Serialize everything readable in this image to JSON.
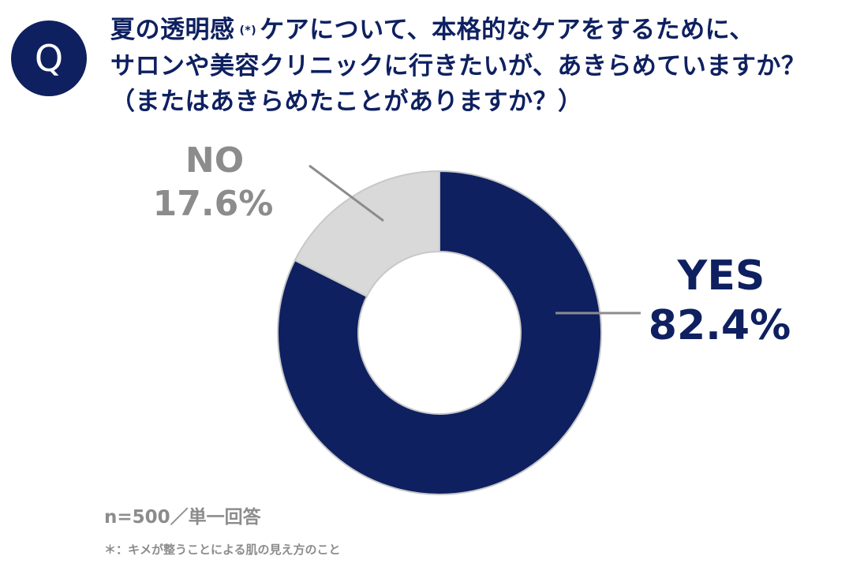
{
  "badge": "Q",
  "question": {
    "line1_a": "夏の透明感",
    "line1_note": "(*)",
    "line1_b": "ケアについて、本格的なケアをするために、",
    "line2": "サロンや美容クリニックに行きたいが、あきらめていますか？",
    "line3": "（またはあきらめたことがありますか？）"
  },
  "chart_data": {
    "type": "pie",
    "donut": true,
    "slices": [
      {
        "name": "YES",
        "value": 82.4,
        "value_label": "82.4%",
        "color": "#0e2060"
      },
      {
        "name": "NO",
        "value": 17.6,
        "value_label": "17.6%",
        "color": "#d9d9d9"
      }
    ],
    "start": "12 o'clock, clockwise"
  },
  "sample_note": "n=500／単一回答",
  "footnote": "＊：キメが整うことによる肌の見え方のこと"
}
